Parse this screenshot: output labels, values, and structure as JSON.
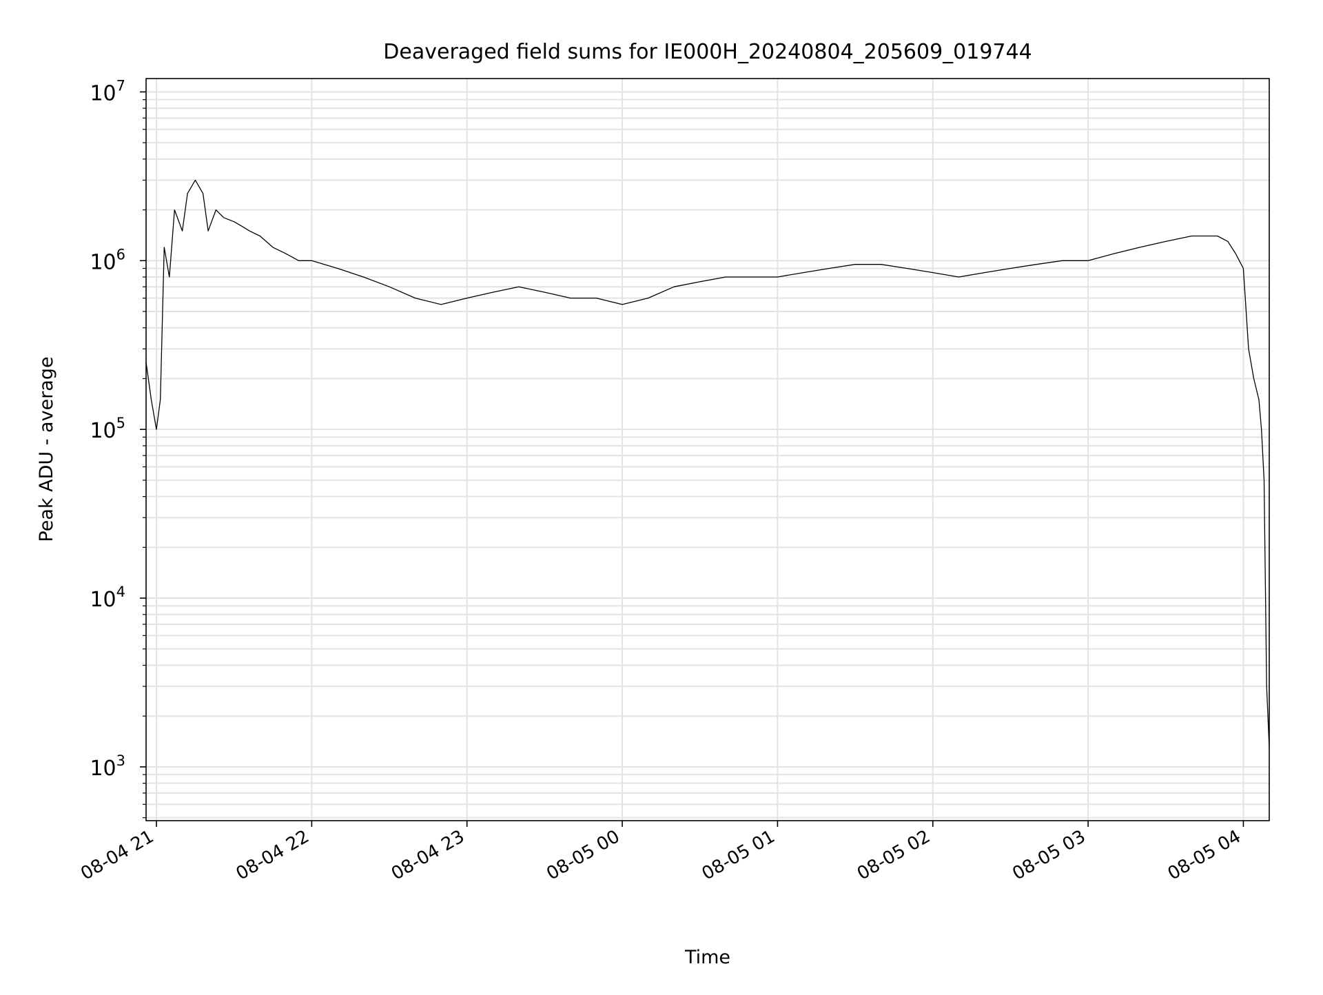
{
  "chart_data": {
    "type": "line",
    "title": "Deaveraged field sums for IE000H_20240804_205609_019744",
    "xlabel": "Time",
    "ylabel": "Peak ADU - average",
    "yscale": "log",
    "ylim": [
      480,
      12000000
    ],
    "xlim": [
      "2024-08-04 20:56:00",
      "2024-08-05 04:10:00"
    ],
    "grid": true,
    "legend": "none",
    "line_color": "#000000",
    "x_ticks": [
      "08-04 21",
      "08-04 22",
      "08-04 23",
      "08-05 00",
      "08-05 01",
      "08-05 02",
      "08-05 03",
      "08-05 04"
    ],
    "y_ticks": [
      {
        "base": "10",
        "exp": "3"
      },
      {
        "base": "10",
        "exp": "4"
      },
      {
        "base": "10",
        "exp": "5"
      },
      {
        "base": "10",
        "exp": "6"
      },
      {
        "base": "10",
        "exp": "7"
      }
    ],
    "series": [
      {
        "x": [
          "2024-08-04 20:56:00",
          "2024-08-04 20:58:00",
          "2024-08-04 21:00:00",
          "2024-08-04 21:01:30",
          "2024-08-04 21:03:00",
          "2024-08-04 21:05:00",
          "2024-08-04 21:07:00",
          "2024-08-04 21:10:00",
          "2024-08-04 21:12:00",
          "2024-08-04 21:15:00",
          "2024-08-04 21:18:00",
          "2024-08-04 21:20:00",
          "2024-08-04 21:23:00",
          "2024-08-04 21:26:00",
          "2024-08-04 21:30:00",
          "2024-08-04 21:33:00",
          "2024-08-04 21:36:00",
          "2024-08-04 21:40:00",
          "2024-08-04 21:45:00",
          "2024-08-04 21:50:00",
          "2024-08-04 21:55:00",
          "2024-08-04 22:00:00",
          "2024-08-04 22:10:00",
          "2024-08-04 22:20:00",
          "2024-08-04 22:30:00",
          "2024-08-04 22:40:00",
          "2024-08-04 22:50:00",
          "2024-08-04 23:00:00",
          "2024-08-04 23:10:00",
          "2024-08-04 23:20:00",
          "2024-08-04 23:30:00",
          "2024-08-04 23:40:00",
          "2024-08-04 23:50:00",
          "2024-08-05 00:00:00",
          "2024-08-05 00:10:00",
          "2024-08-05 00:20:00",
          "2024-08-05 00:30:00",
          "2024-08-05 00:40:00",
          "2024-08-05 00:50:00",
          "2024-08-05 01:00:00",
          "2024-08-05 01:10:00",
          "2024-08-05 01:20:00",
          "2024-08-05 01:30:00",
          "2024-08-05 01:40:00",
          "2024-08-05 01:50:00",
          "2024-08-05 02:00:00",
          "2024-08-05 02:10:00",
          "2024-08-05 02:20:00",
          "2024-08-05 02:30:00",
          "2024-08-05 02:40:00",
          "2024-08-05 02:50:00",
          "2024-08-05 03:00:00",
          "2024-08-05 03:10:00",
          "2024-08-05 03:20:00",
          "2024-08-05 03:30:00",
          "2024-08-05 03:40:00",
          "2024-08-05 03:50:00",
          "2024-08-05 03:54:00",
          "2024-08-05 03:57:00",
          "2024-08-05 04:00:00",
          "2024-08-05 04:02:00",
          "2024-08-05 04:04:00",
          "2024-08-05 04:06:00",
          "2024-08-05 04:07:00",
          "2024-08-05 04:08:00",
          "2024-08-05 04:09:00",
          "2024-08-05 04:10:00"
        ],
        "y": [
          250000,
          150000,
          100000,
          150000,
          1200000,
          800000,
          2000000,
          1500000,
          2500000,
          3000000,
          2500000,
          1500000,
          2000000,
          1800000,
          1700000,
          1600000,
          1500000,
          1400000,
          1200000,
          1100000,
          1000000,
          1000000,
          900000,
          800000,
          700000,
          600000,
          550000,
          600000,
          650000,
          700000,
          650000,
          600000,
          600000,
          550000,
          600000,
          700000,
          750000,
          800000,
          800000,
          800000,
          850000,
          900000,
          950000,
          950000,
          900000,
          850000,
          800000,
          850000,
          900000,
          950000,
          1000000,
          1000000,
          1100000,
          1200000,
          1300000,
          1400000,
          1400000,
          1300000,
          1100000,
          900000,
          300000,
          200000,
          150000,
          100000,
          50000,
          3000,
          1300
        ]
      }
    ]
  }
}
